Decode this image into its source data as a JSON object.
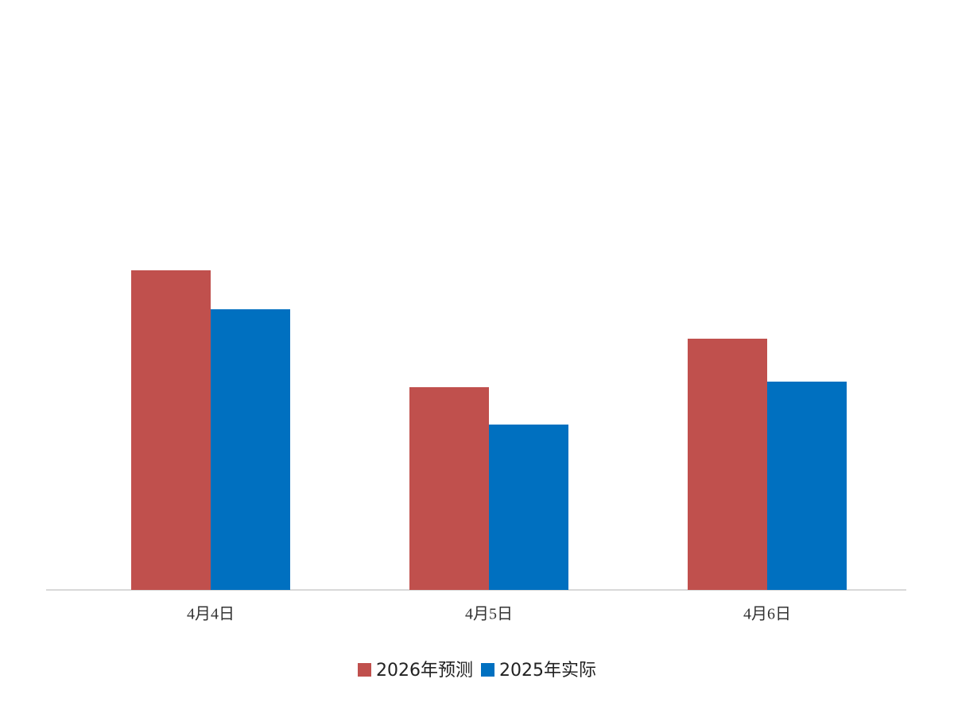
{
  "chart_data": {
    "type": "bar",
    "categories": [
      "4月4日",
      "4月5日",
      "4月6日"
    ],
    "series": [
      {
        "name": "2026年预测",
        "color": "#c0504d",
        "values": [
          402,
          255,
          316
        ]
      },
      {
        "name": "2025年实际",
        "color": "#0070c0",
        "values": [
          353,
          208,
          262
        ]
      }
    ],
    "ylim": [
      0,
      700
    ],
    "legend": "bottom"
  }
}
